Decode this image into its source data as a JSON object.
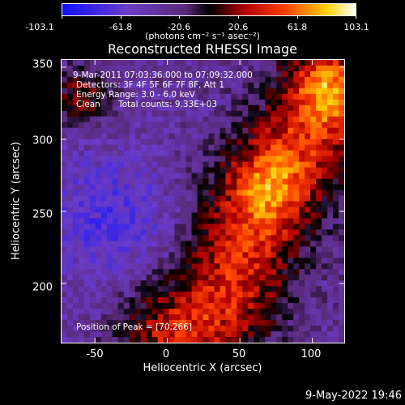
{
  "colorbar": {
    "ticks": [
      "-103.1",
      "-61.8",
      "-20.6",
      "20.6",
      "61.8",
      "103.1"
    ],
    "min": -103.1,
    "max": 103.1,
    "units_label": "(photons cm⁻² s⁻¹ asec⁻²)"
  },
  "title": "Reconstructed RHESSI Image",
  "annotations": {
    "time_range": "9-Mar-2011 07:03:36.000 to 07:09:32.000",
    "detectors": "Detectors: 3F 4F 5F 6F 7F 8F, Att 1",
    "energy": "Energy Range: 3.0 - 6.0 keV",
    "clean": "Clean",
    "total_counts": "Total counts: 9.33E+03",
    "peak": "Position of Peak = [70,266]"
  },
  "axes": {
    "xlabel": "Heliocentric X (arcsec)",
    "ylabel": "Heliocentric Y (arcsec)",
    "xticks": [
      "-50",
      "0",
      "50",
      "100"
    ],
    "yticks": [
      "350",
      "300",
      "250",
      "200"
    ],
    "xlim": [
      -73,
      122
    ],
    "ylim": [
      159,
      355
    ]
  },
  "footer_date": "9-May-2022 19:46",
  "chart_data": {
    "type": "heatmap",
    "title": "Reconstructed RHESSI Image",
    "xlabel": "Heliocentric X (arcsec)",
    "ylabel": "Heliocentric Y (arcsec)",
    "xlim": [
      -73,
      122
    ],
    "ylim": [
      159,
      355
    ],
    "colorbar_range": [
      -103.1,
      103.1
    ],
    "peak_position": [
      70,
      266
    ],
    "bright_ridge": [
      [
        10,
        165
      ],
      [
        40,
        190
      ],
      [
        55,
        230
      ],
      [
        70,
        266
      ],
      [
        95,
        300
      ],
      [
        110,
        320
      ]
    ]
  }
}
